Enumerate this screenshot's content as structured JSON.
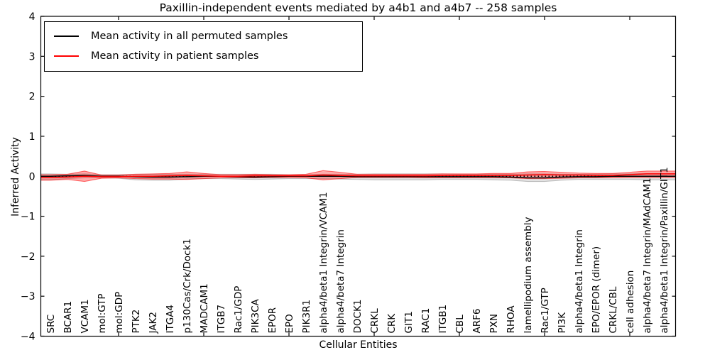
{
  "chart_data": {
    "type": "line",
    "title": "Paxillin-independent events mediated by a4b1 and a4b7 -- 258 samples",
    "xlabel": "Cellular Entities",
    "ylabel": "Inferred Activity",
    "ylim": [
      -4,
      4
    ],
    "grid": false,
    "legend_position": "upper left",
    "zero_line": {
      "style": "dotted",
      "color": "#000000",
      "value": 0
    },
    "ytick_vals": [
      4,
      3,
      2,
      1,
      0,
      -1,
      -2,
      -3,
      -4
    ],
    "ytick_labels": [
      "4",
      "3",
      "2",
      "1",
      "0",
      "−1",
      "−2",
      "−3",
      "−4"
    ],
    "x_major_tick_indices": [
      4,
      9,
      14,
      19,
      24,
      29,
      34
    ],
    "categories": [
      "SRC",
      "BCAR1",
      "VCAM1",
      "mol:GTP",
      "mol:GDP",
      "PTK2",
      "JAK2",
      "ITGA4",
      "p130Cas/Crk/Dock1",
      "MADCAM1",
      "ITGB7",
      "Rac1/GDP",
      "PIK3CA",
      "EPOR",
      "EPO",
      "PIK3R1",
      "alpha4/beta1 Integrin/VCAM1",
      "alpha4/beta7 Integrin",
      "DOCK1",
      "CRKL",
      "CRK",
      "GIT1",
      "RAC1",
      "ITGB1",
      "CBL",
      "ARF6",
      "PXN",
      "RHOA",
      "lamellipodium assembly",
      "Rac1/GTP",
      "PI3K",
      "alpha4/beta1 Integrin",
      "EPO/EPOR (dimer)",
      "CRKL/CBL",
      "cell adhesion",
      "alpha4/beta7 Integrin/MAdCAM1",
      "alpha4/beta1 Integrin/Paxillin/GIT1"
    ],
    "series": [
      {
        "name": "Mean activity in all permuted samples",
        "color": "#000000",
        "band_color": "#000000",
        "band_opacity": 0.11,
        "band_edge_opacity": 0.22,
        "values": [
          0.0,
          0.01,
          0.02,
          0.0,
          0.0,
          -0.01,
          -0.02,
          -0.02,
          -0.01,
          0.0,
          0.0,
          -0.01,
          -0.02,
          -0.01,
          0.0,
          0.0,
          0.0,
          0.0,
          -0.01,
          -0.01,
          -0.01,
          -0.01,
          -0.01,
          -0.01,
          -0.01,
          -0.01,
          -0.01,
          -0.02,
          -0.04,
          -0.04,
          -0.02,
          -0.01,
          -0.01,
          0.0,
          0.0,
          0.0,
          0.0
        ],
        "band_lo": [
          -0.09,
          -0.06,
          -0.04,
          -0.04,
          -0.05,
          -0.09,
          -0.1,
          -0.1,
          -0.07,
          -0.06,
          -0.06,
          -0.07,
          -0.08,
          -0.07,
          -0.06,
          -0.06,
          -0.06,
          -0.07,
          -0.08,
          -0.09,
          -0.09,
          -0.09,
          -0.09,
          -0.08,
          -0.08,
          -0.08,
          -0.09,
          -0.1,
          -0.13,
          -0.13,
          -0.1,
          -0.08,
          -0.08,
          -0.08,
          -0.08,
          -0.09,
          -0.09
        ],
        "band_hi": [
          0.06,
          0.05,
          0.06,
          0.04,
          0.04,
          0.05,
          0.05,
          0.05,
          0.05,
          0.05,
          0.05,
          0.05,
          0.05,
          0.05,
          0.04,
          0.04,
          0.05,
          0.05,
          0.05,
          0.06,
          0.06,
          0.06,
          0.06,
          0.06,
          0.05,
          0.05,
          0.05,
          0.05,
          0.06,
          0.06,
          0.05,
          0.05,
          0.05,
          0.06,
          0.06,
          0.07,
          0.07
        ]
      },
      {
        "name": "Mean activity in patient samples",
        "color": "#ff0000",
        "band_color": "#ff0000",
        "band_opacity": 0.32,
        "band_edge_opacity": 0.55,
        "values": [
          -0.03,
          -0.02,
          0.0,
          -0.01,
          -0.01,
          0.0,
          0.0,
          0.01,
          0.02,
          0.01,
          0.0,
          0.0,
          0.01,
          0.01,
          0.01,
          0.01,
          0.03,
          0.02,
          0.01,
          0.01,
          0.01,
          0.01,
          0.01,
          0.02,
          0.02,
          0.02,
          0.02,
          0.02,
          0.03,
          0.04,
          0.03,
          0.03,
          0.02,
          0.02,
          0.04,
          0.06,
          0.06
        ],
        "band_lo": [
          -0.1,
          -0.08,
          -0.13,
          -0.05,
          -0.04,
          -0.06,
          -0.07,
          -0.07,
          -0.08,
          -0.06,
          -0.04,
          -0.04,
          -0.04,
          -0.03,
          -0.03,
          -0.04,
          -0.09,
          -0.06,
          -0.03,
          -0.03,
          -0.03,
          -0.03,
          -0.04,
          -0.04,
          -0.04,
          -0.04,
          -0.04,
          -0.04,
          -0.06,
          -0.06,
          -0.05,
          -0.04,
          -0.04,
          -0.04,
          -0.03,
          -0.03,
          -0.03
        ],
        "band_hi": [
          0.04,
          0.05,
          0.13,
          0.03,
          0.03,
          0.05,
          0.06,
          0.07,
          0.11,
          0.07,
          0.04,
          0.04,
          0.05,
          0.04,
          0.04,
          0.05,
          0.14,
          0.1,
          0.05,
          0.05,
          0.05,
          0.05,
          0.05,
          0.06,
          0.06,
          0.06,
          0.07,
          0.07,
          0.11,
          0.12,
          0.1,
          0.08,
          0.07,
          0.07,
          0.1,
          0.13,
          0.13
        ]
      }
    ]
  }
}
